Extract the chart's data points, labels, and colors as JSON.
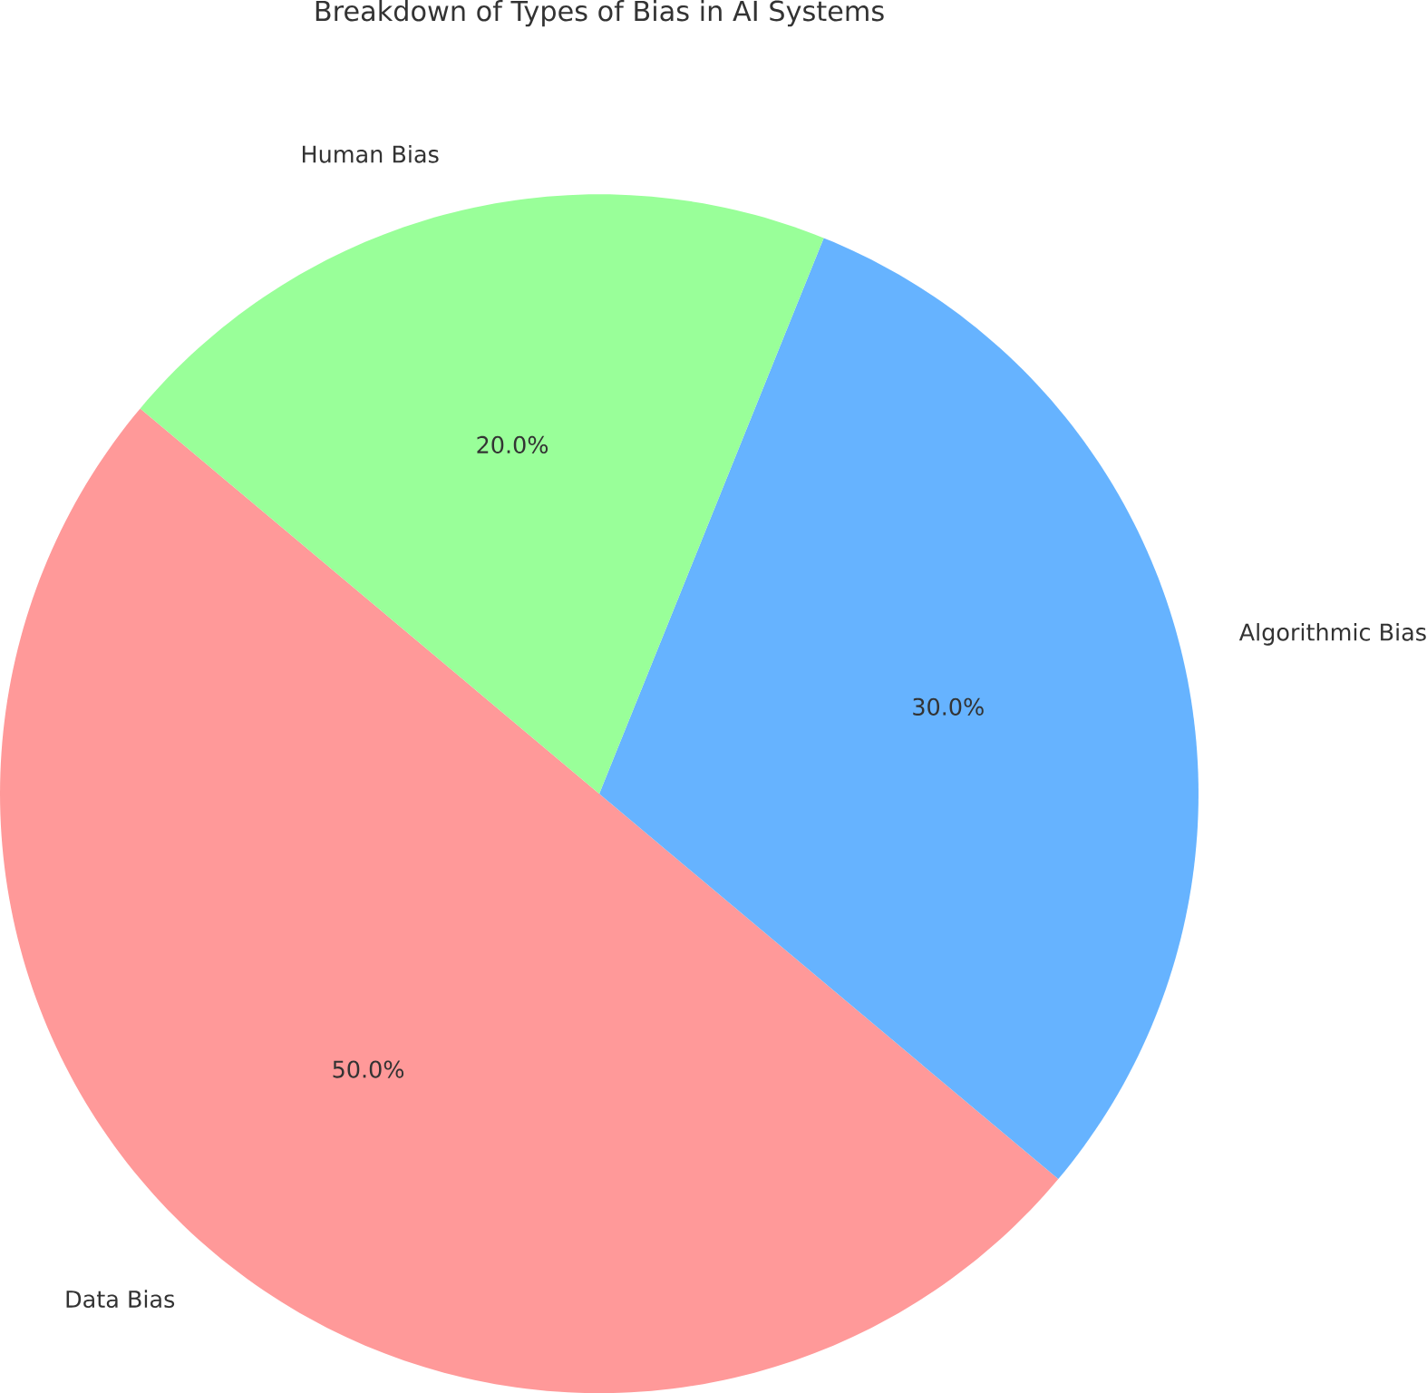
{
  "chart_data": {
    "type": "pie",
    "title": "Breakdown of Types of Bias in AI Systems",
    "categories": [
      "Data Bias",
      "Algorithmic Bias",
      "Human Bias"
    ],
    "values": [
      50,
      30,
      20
    ],
    "colors": [
      "#ff9999",
      "#66b3ff",
      "#99ff99"
    ],
    "value_labels": [
      "50.0%",
      "30.0%",
      "20.0%"
    ]
  }
}
